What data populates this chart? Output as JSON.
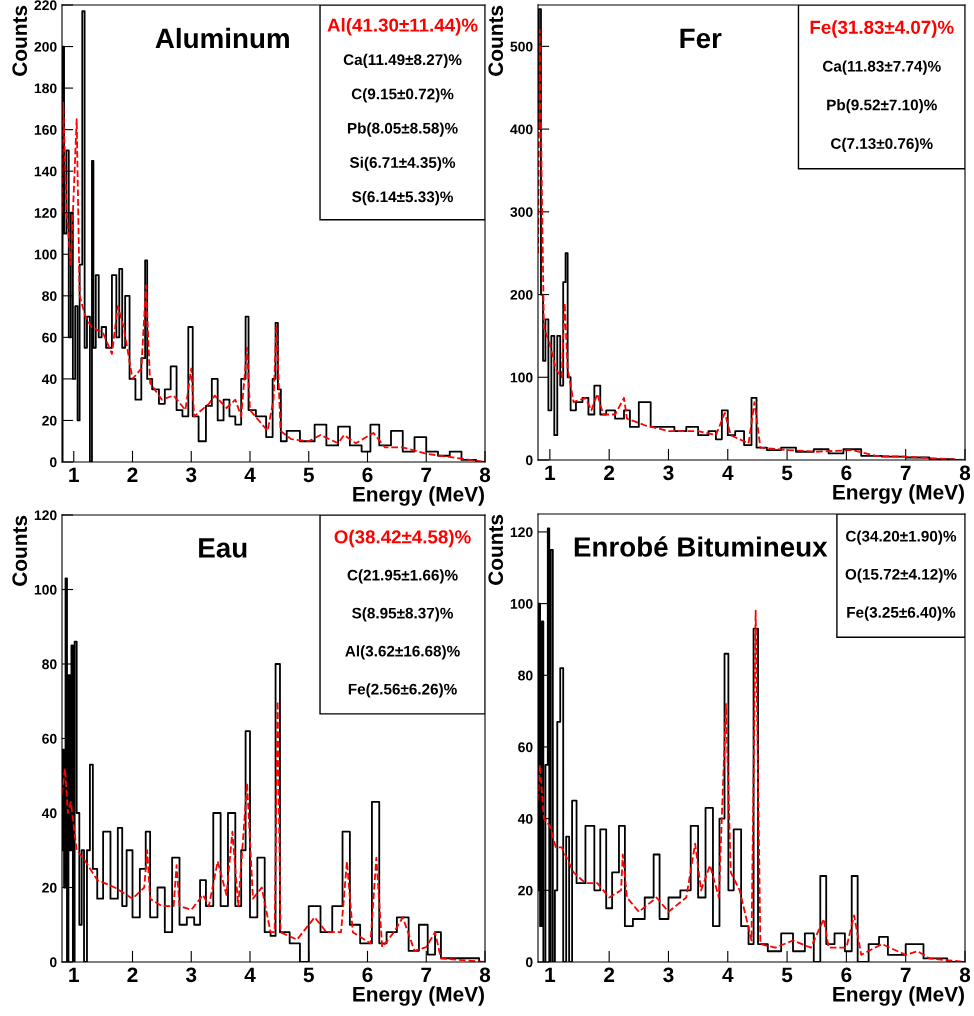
{
  "chart_data": [
    {
      "type": "step",
      "title": "Aluminum",
      "xlabel": "Energy (MeV)",
      "ylabel": "Counts",
      "xlim": [
        0.8,
        8
      ],
      "xticks": [
        1,
        2,
        3,
        4,
        5,
        6,
        7,
        8
      ],
      "ylim": [
        0,
        220
      ],
      "yticks": [
        0,
        20,
        40,
        60,
        80,
        100,
        120,
        140,
        160,
        180,
        200,
        220
      ],
      "grid": false,
      "annotations": [
        "Ca(11.49±8.27)%",
        "C(9.15±0.72)%",
        "Pb(8.05±8.58)%",
        "Si(6.71±4.35)%",
        "S(6.14±5.33)%"
      ],
      "series": [
        {
          "color": "#000000",
          "line_style": "solid",
          "x": [
            0.8,
            0.82,
            0.85,
            0.9,
            0.93,
            0.97,
            1.0,
            1.05,
            1.08,
            1.12,
            1.17,
            1.2,
            1.25,
            1.3,
            1.32,
            1.35,
            1.4,
            1.45,
            1.5,
            1.6,
            1.7,
            1.75,
            1.8,
            1.85,
            1.9,
            2.0,
            2.1,
            2.2,
            2.23,
            2.27,
            2.4,
            2.5,
            2.6,
            2.7,
            2.8,
            2.9,
            3.0,
            3.05,
            3.2,
            3.3,
            3.4,
            3.5,
            3.6,
            3.7,
            3.8,
            3.9,
            3.95,
            4.0,
            4.2,
            4.35,
            4.42,
            4.45,
            4.5,
            4.55,
            4.7,
            5.0,
            5.2,
            5.4,
            5.6,
            5.8,
            6.0,
            6.1,
            6.3,
            6.5,
            6.7,
            6.9,
            7.1,
            7.3,
            7.5,
            7.7,
            8.0
          ],
          "values": [
            0,
            200,
            110,
            150,
            60,
            120,
            40,
            75,
            20,
            95,
            217,
            55,
            70,
            0,
            145,
            55,
            90,
            60,
            65,
            55,
            90,
            60,
            93,
            55,
            80,
            40,
            30,
            50,
            97,
            40,
            35,
            28,
            35,
            46,
            25,
            22,
            65,
            22,
            10,
            27,
            40,
            20,
            30,
            22,
            18,
            40,
            70,
            25,
            22,
            12,
            40,
            67,
            35,
            10,
            15,
            10,
            18,
            8,
            17,
            8,
            5,
            18,
            8,
            15,
            5,
            12,
            5,
            3,
            5,
            1,
            0
          ]
        },
        {
          "type": "line",
          "name": "Al(41.30±11.44)%",
          "color": "#ff0000",
          "line_style": "dashed",
          "x": [
            0.8,
            0.82,
            0.88,
            0.95,
            1.0,
            1.05,
            1.1,
            1.2,
            1.3,
            1.5,
            1.65,
            1.75,
            1.85,
            2.0,
            2.15,
            2.23,
            2.3,
            2.5,
            2.7,
            2.9,
            3.0,
            3.05,
            3.3,
            3.4,
            3.6,
            3.75,
            3.85,
            3.95,
            4.0,
            4.3,
            4.4,
            4.45,
            4.52,
            4.7,
            5.0,
            5.2,
            5.5,
            5.6,
            5.8,
            6.1,
            6.3,
            6.6,
            7.0,
            7.5,
            8.0
          ],
          "values": [
            120,
            173,
            120,
            95,
            130,
            165,
            80,
            70,
            65,
            62,
            52,
            75,
            65,
            40,
            45,
            85,
            38,
            30,
            32,
            25,
            45,
            22,
            28,
            32,
            26,
            30,
            22,
            55,
            25,
            15,
            30,
            66,
            15,
            11,
            10,
            13,
            9,
            13,
            9,
            14,
            7,
            7,
            4,
            2,
            0
          ]
        }
      ]
    },
    {
      "type": "step",
      "title": "Fer",
      "xlabel": "Energy (MeV)",
      "ylabel": "Counts",
      "xlim": [
        0.8,
        8
      ],
      "xticks": [
        1,
        2,
        3,
        4,
        5,
        6,
        7,
        8
      ],
      "ylim": [
        0,
        550
      ],
      "yticks": [
        0,
        100,
        200,
        300,
        400,
        500
      ],
      "grid": false,
      "annotations": [
        "Ca(11.83±7.74)%",
        "Pb(9.52±7.10)%",
        "C(7.13±0.76)%"
      ],
      "series": [
        {
          "color": "#000000",
          "line_style": "solid",
          "x": [
            0.8,
            0.83,
            0.87,
            0.9,
            0.95,
            1.0,
            1.05,
            1.1,
            1.15,
            1.2,
            1.25,
            1.28,
            1.32,
            1.38,
            1.5,
            1.6,
            1.7,
            1.8,
            1.9,
            2.0,
            2.2,
            2.3,
            2.4,
            2.6,
            2.8,
            3.0,
            3.2,
            3.4,
            3.6,
            3.75,
            3.85,
            3.95,
            4.05,
            4.2,
            4.35,
            4.45,
            4.52,
            4.8,
            5.0,
            5.3,
            5.6,
            5.8,
            6.1,
            6.4,
            6.8,
            7.2,
            7.6,
            8.0
          ],
          "values": [
            400,
            545,
            200,
            120,
            170,
            60,
            150,
            30,
            150,
            90,
            215,
            250,
            100,
            60,
            70,
            75,
            55,
            90,
            55,
            60,
            50,
            60,
            40,
            70,
            40,
            40,
            35,
            40,
            30,
            35,
            25,
            60,
            30,
            35,
            18,
            75,
            15,
            12,
            15,
            10,
            13,
            8,
            13,
            5,
            4,
            3,
            1,
            0
          ]
        },
        {
          "type": "line",
          "name": "Fe(31.83±4.07)%",
          "color": "#ff0000",
          "line_style": "dashed",
          "x": [
            0.8,
            0.83,
            0.87,
            0.9,
            1.0,
            1.1,
            1.2,
            1.25,
            1.3,
            1.4,
            1.6,
            1.7,
            1.8,
            1.9,
            2.1,
            2.25,
            2.3,
            2.6,
            3.0,
            3.5,
            3.8,
            3.95,
            4.05,
            4.35,
            4.45,
            4.55,
            5.0,
            5.5,
            6.1,
            6.5,
            7.0,
            7.5,
            8.0
          ],
          "values": [
            250,
            520,
            300,
            160,
            140,
            110,
            100,
            190,
            110,
            70,
            75,
            60,
            80,
            55,
            55,
            75,
            50,
            42,
            35,
            35,
            30,
            57,
            30,
            20,
            70,
            15,
            12,
            10,
            12,
            5,
            4,
            2,
            0
          ]
        }
      ]
    },
    {
      "type": "step",
      "title": "Eau",
      "xlabel": "Energy (MeV)",
      "ylabel": "Counts",
      "xlim": [
        0.8,
        8
      ],
      "xticks": [
        1,
        2,
        3,
        4,
        5,
        6,
        7,
        8
      ],
      "ylim": [
        0,
        120
      ],
      "yticks": [
        0,
        20,
        40,
        60,
        80,
        100,
        120
      ],
      "grid": false,
      "annotations": [
        "C(21.95±1.66)%",
        "S(8.95±8.37)%",
        "Al(3.62±16.68)%",
        "Fe(2.56±6.26)%"
      ],
      "series": [
        {
          "color": "#000000",
          "line_style": "solid",
          "x": [
            0.8,
            0.82,
            0.85,
            0.87,
            0.9,
            0.92,
            0.95,
            0.97,
            1.0,
            1.03,
            1.07,
            1.12,
            1.15,
            1.2,
            1.25,
            1.3,
            1.35,
            1.45,
            1.55,
            1.7,
            1.8,
            1.85,
            1.95,
            2.05,
            2.2,
            2.25,
            2.35,
            2.5,
            2.6,
            2.75,
            2.85,
            3.0,
            3.1,
            3.2,
            3.3,
            3.45,
            3.55,
            3.7,
            3.8,
            3.9,
            3.95,
            4.05,
            4.2,
            4.3,
            4.4,
            4.47,
            4.55,
            4.8,
            4.9,
            5.1,
            5.3,
            5.5,
            5.65,
            5.75,
            6.0,
            6.15,
            6.25,
            6.4,
            6.6,
            6.8,
            6.95,
            7.1,
            7.2,
            7.3,
            7.8,
            8.0
          ],
          "values": [
            30,
            57,
            20,
            103,
            0,
            77,
            30,
            85,
            0,
            86,
            40,
            10,
            30,
            0,
            30,
            53,
            25,
            17,
            35,
            17,
            36,
            15,
            30,
            12,
            25,
            35,
            12,
            20,
            8,
            28,
            10,
            12,
            10,
            22,
            15,
            40,
            15,
            40,
            15,
            30,
            62,
            12,
            28,
            8,
            7,
            80,
            8,
            5,
            0,
            15,
            8,
            15,
            35,
            10,
            5,
            43,
            5,
            8,
            12,
            3,
            10,
            2,
            8,
            1,
            1,
            0
          ]
        },
        {
          "type": "line",
          "name": "O(38.42±4.58)%",
          "color": "#ff0000",
          "line_style": "dashed",
          "x": [
            0.8,
            0.85,
            0.9,
            0.95,
            1.05,
            1.2,
            1.4,
            1.7,
            2.0,
            2.2,
            2.25,
            2.3,
            2.5,
            2.7,
            2.75,
            2.8,
            3.0,
            3.2,
            3.3,
            3.45,
            3.6,
            3.7,
            3.8,
            3.95,
            4.05,
            4.2,
            4.35,
            4.42,
            4.47,
            4.52,
            4.8,
            5.1,
            5.3,
            5.55,
            5.65,
            5.75,
            6.05,
            6.15,
            6.25,
            6.45,
            6.6,
            6.8,
            7.0,
            7.15,
            7.25,
            8.0
          ],
          "values": [
            45,
            52,
            40,
            43,
            30,
            27,
            22,
            20,
            17,
            20,
            30,
            17,
            15,
            15,
            26,
            15,
            14,
            18,
            15,
            27,
            18,
            35,
            15,
            48,
            17,
            20,
            8,
            8,
            70,
            8,
            6,
            12,
            8,
            8,
            27,
            8,
            5,
            28,
            4,
            8,
            12,
            3,
            4,
            8,
            1,
            0
          ]
        }
      ]
    },
    {
      "type": "step",
      "title": "Enrobé Bitumineux",
      "xlabel": "Energy (MeV)",
      "ylabel": "Counts",
      "xlim": [
        0.8,
        8
      ],
      "xticks": [
        1,
        2,
        3,
        4,
        5,
        6,
        7,
        8
      ],
      "ylim": [
        0,
        125
      ],
      "yticks": [
        0,
        20,
        40,
        60,
        80,
        100,
        120
      ],
      "grid": false,
      "annotations": [
        "C(34.20±1.90)%",
        "O(15.72±4.12)%",
        "Fe(3.25±6.40)%"
      ],
      "series": [
        {
          "color": "#000000",
          "line_style": "solid",
          "x": [
            0.8,
            0.82,
            0.85,
            0.88,
            0.9,
            0.95,
            0.98,
            1.0,
            1.03,
            1.07,
            1.1,
            1.15,
            1.2,
            1.25,
            1.3,
            1.35,
            1.4,
            1.5,
            1.7,
            1.8,
            1.9,
            2.0,
            2.1,
            2.23,
            2.3,
            2.5,
            2.7,
            2.8,
            2.9,
            3.1,
            3.3,
            3.45,
            3.55,
            3.7,
            3.8,
            3.92,
            3.97,
            4.05,
            4.15,
            4.3,
            4.4,
            4.47,
            4.55,
            4.8,
            5.0,
            5.2,
            5.4,
            5.5,
            5.62,
            5.7,
            5.9,
            6.05,
            6.13,
            6.25,
            6.5,
            6.6,
            6.8,
            7.2,
            7.4,
            8.0
          ],
          "values": [
            20,
            100,
            10,
            95,
            0,
            55,
            121,
            0,
            115,
            0,
            20,
            67,
            82,
            0,
            35,
            0,
            45,
            22,
            38,
            20,
            37,
            15,
            25,
            38,
            10,
            12,
            18,
            30,
            12,
            18,
            20,
            38,
            18,
            43,
            10,
            40,
            86,
            20,
            37,
            10,
            5,
            93,
            5,
            3,
            8,
            3,
            8,
            0,
            24,
            5,
            8,
            3,
            24,
            0,
            5,
            7,
            2,
            5,
            1,
            0
          ]
        },
        {
          "type": "line",
          "color": "#ff0000",
          "line_style": "dashed",
          "x": [
            0.8,
            0.83,
            0.9,
            1.0,
            1.1,
            1.2,
            1.4,
            1.6,
            1.8,
            2.0,
            2.2,
            2.23,
            2.3,
            2.5,
            2.8,
            3.0,
            3.3,
            3.45,
            3.55,
            3.7,
            3.85,
            3.97,
            4.05,
            4.2,
            4.4,
            4.47,
            4.55,
            4.8,
            5.1,
            5.4,
            5.62,
            5.7,
            6.0,
            6.13,
            6.25,
            6.6,
            7.0,
            7.2,
            7.4,
            8.0
          ],
          "values": [
            45,
            55,
            40,
            38,
            32,
            32,
            25,
            22,
            22,
            18,
            20,
            30,
            18,
            14,
            18,
            14,
            18,
            33,
            20,
            27,
            18,
            72,
            25,
            20,
            6,
            98,
            5,
            4,
            6,
            4,
            12,
            4,
            4,
            13,
            2,
            5,
            2,
            3,
            1,
            0
          ]
        }
      ]
    }
  ]
}
